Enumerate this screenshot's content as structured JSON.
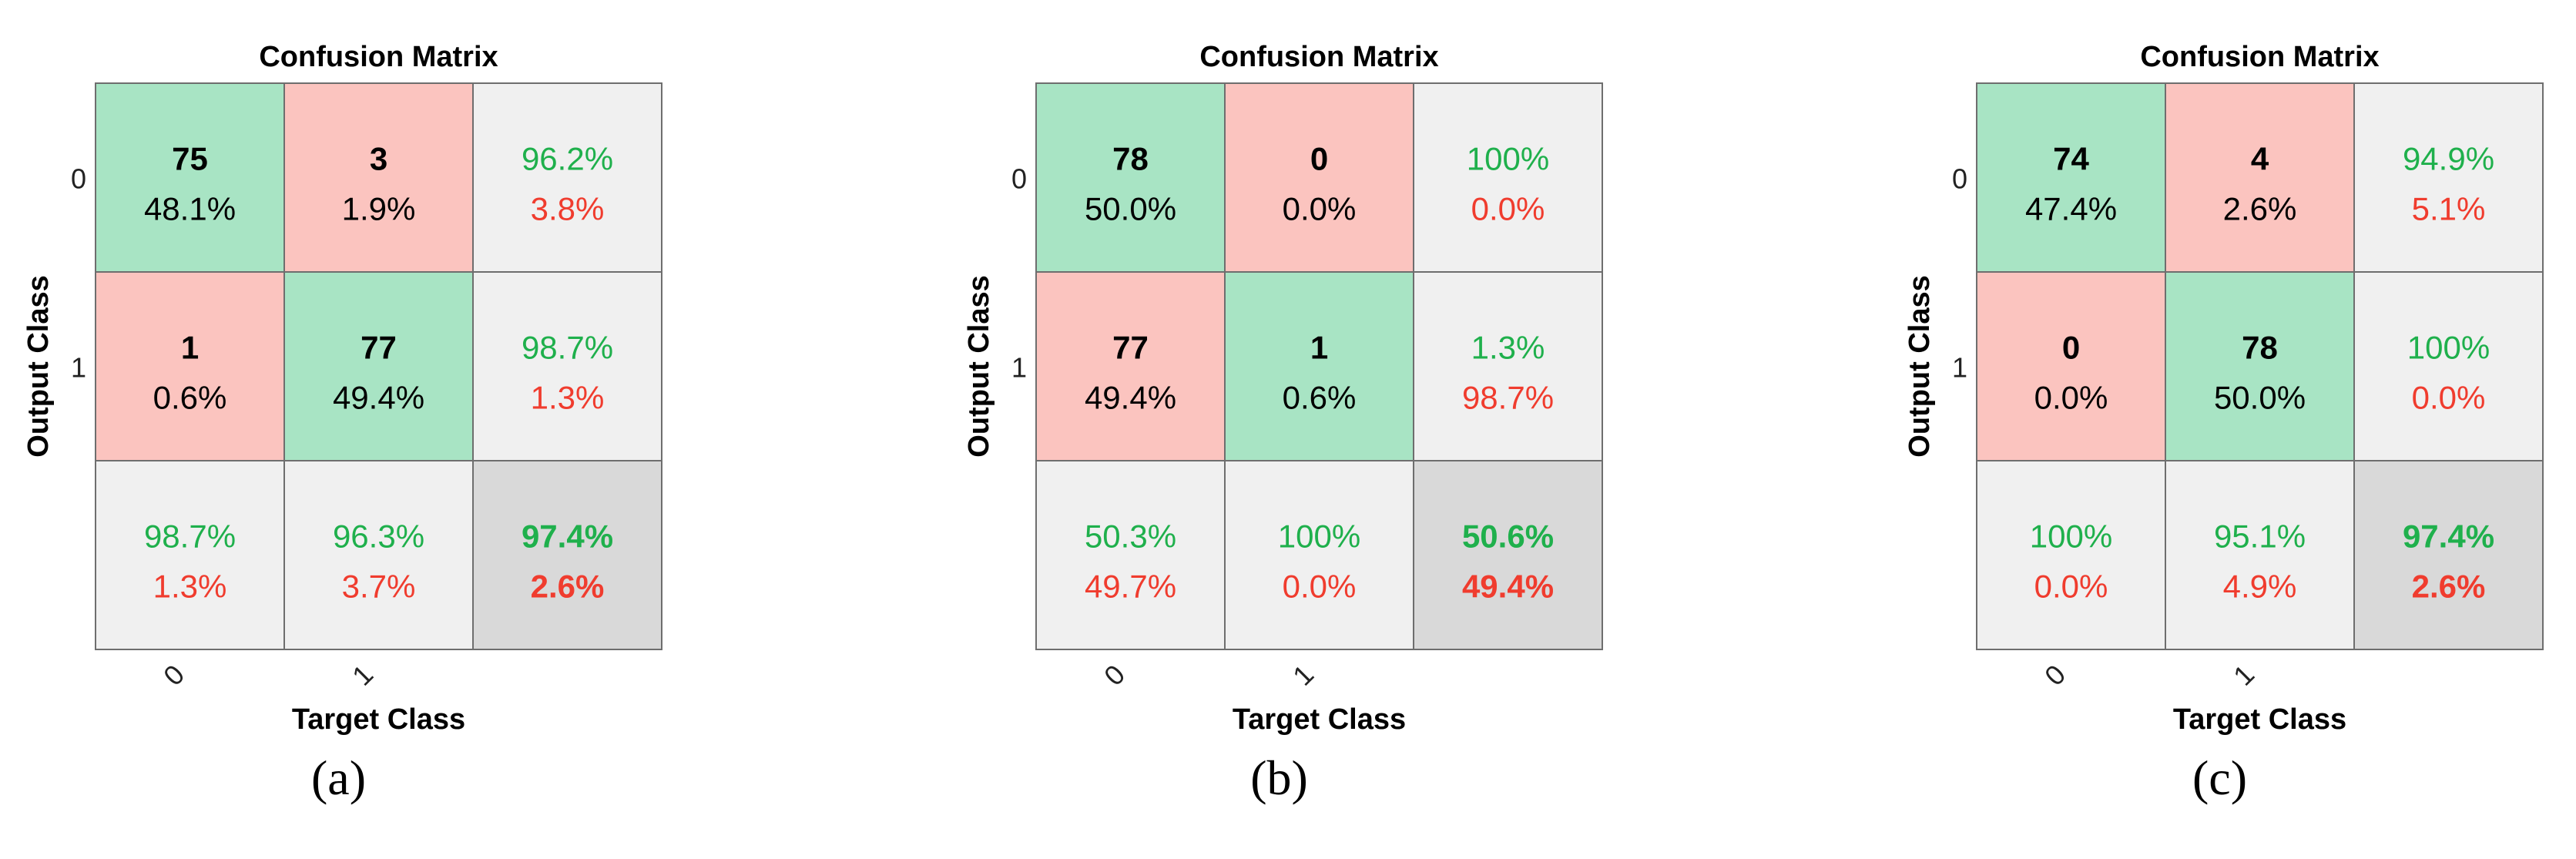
{
  "colors": {
    "correct_cell": "#a8e4c4",
    "wrong_cell": "#fbc4bf",
    "summary_cell": "#f0f0f0",
    "overall_cell": "#d9d9d9",
    "grid_line": "#6e6e6e",
    "green_text": "#1fb04c",
    "red_text": "#f03c2e",
    "dark_text": "#000000"
  },
  "chart_data": [
    {
      "type": "heatmap",
      "title": "Confusion Matrix",
      "xlabel": "Target Class",
      "ylabel": "Output Class",
      "x_ticks": [
        "0",
        "1"
      ],
      "y_ticks": [
        "0",
        "1"
      ],
      "caption": "(a)",
      "cells": [
        [
          {
            "count": "75",
            "pct": "48.1%"
          },
          {
            "count": "3",
            "pct": "1.9%"
          }
        ],
        [
          {
            "count": "1",
            "pct": "0.6%"
          },
          {
            "count": "77",
            "pct": "49.4%"
          }
        ]
      ],
      "row_summary": [
        {
          "correct": "96.2%",
          "wrong": "3.8%"
        },
        {
          "correct": "98.7%",
          "wrong": "1.3%"
        }
      ],
      "col_summary": [
        {
          "correct": "98.7%",
          "wrong": "1.3%"
        },
        {
          "correct": "96.3%",
          "wrong": "3.7%"
        }
      ],
      "overall": {
        "correct": "97.4%",
        "wrong": "2.6%"
      }
    },
    {
      "type": "heatmap",
      "title": "Confusion Matrix",
      "xlabel": "Target Class",
      "ylabel": "Output Class",
      "x_ticks": [
        "0",
        "1"
      ],
      "y_ticks": [
        "0",
        "1"
      ],
      "caption": "(b)",
      "cells": [
        [
          {
            "count": "78",
            "pct": "50.0%"
          },
          {
            "count": "0",
            "pct": "0.0%"
          }
        ],
        [
          {
            "count": "77",
            "pct": "49.4%"
          },
          {
            "count": "1",
            "pct": "0.6%"
          }
        ]
      ],
      "row_summary": [
        {
          "correct": "100%",
          "wrong": "0.0%"
        },
        {
          "correct": "1.3%",
          "wrong": "98.7%"
        }
      ],
      "col_summary": [
        {
          "correct": "50.3%",
          "wrong": "49.7%"
        },
        {
          "correct": "100%",
          "wrong": "0.0%"
        }
      ],
      "overall": {
        "correct": "50.6%",
        "wrong": "49.4%"
      }
    },
    {
      "type": "heatmap",
      "title": "Confusion Matrix",
      "xlabel": "Target Class",
      "ylabel": "Output Class",
      "x_ticks": [
        "0",
        "1"
      ],
      "y_ticks": [
        "0",
        "1"
      ],
      "caption": "(c)",
      "cells": [
        [
          {
            "count": "74",
            "pct": "47.4%"
          },
          {
            "count": "4",
            "pct": "2.6%"
          }
        ],
        [
          {
            "count": "0",
            "pct": "0.0%"
          },
          {
            "count": "78",
            "pct": "50.0%"
          }
        ]
      ],
      "row_summary": [
        {
          "correct": "94.9%",
          "wrong": "5.1%"
        },
        {
          "correct": "100%",
          "wrong": "0.0%"
        }
      ],
      "col_summary": [
        {
          "correct": "100%",
          "wrong": "0.0%"
        },
        {
          "correct": "95.1%",
          "wrong": "4.9%"
        }
      ],
      "overall": {
        "correct": "97.4%",
        "wrong": "2.6%"
      }
    }
  ]
}
